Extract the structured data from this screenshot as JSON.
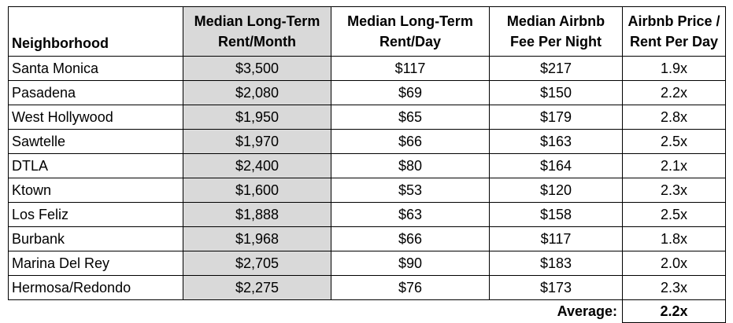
{
  "table": {
    "headers": {
      "neighborhood": "Neighborhood",
      "rent_month": [
        "Median Long-Term",
        "Rent/Month"
      ],
      "rent_day": [
        "Median Long-Term",
        "Rent/Day"
      ],
      "airbnb_fee": [
        "Median Airbnb",
        "Fee Per Night"
      ],
      "ratio": [
        "Airbnb Price /",
        "Rent Per Day"
      ]
    },
    "rows": [
      {
        "neighborhood": "Santa Monica",
        "rent_month": "$3,500",
        "rent_day": "$117",
        "airbnb_fee": "$217",
        "ratio": "1.9x"
      },
      {
        "neighborhood": "Pasadena",
        "rent_month": "$2,080",
        "rent_day": "$69",
        "airbnb_fee": "$150",
        "ratio": "2.2x"
      },
      {
        "neighborhood": "West Hollywood",
        "rent_month": "$1,950",
        "rent_day": "$65",
        "airbnb_fee": "$179",
        "ratio": "2.8x"
      },
      {
        "neighborhood": "Sawtelle",
        "rent_month": "$1,970",
        "rent_day": "$66",
        "airbnb_fee": "$163",
        "ratio": "2.5x"
      },
      {
        "neighborhood": "DTLA",
        "rent_month": "$2,400",
        "rent_day": "$80",
        "airbnb_fee": "$164",
        "ratio": "2.1x"
      },
      {
        "neighborhood": "Ktown",
        "rent_month": "$1,600",
        "rent_day": "$53",
        "airbnb_fee": "$120",
        "ratio": "2.3x"
      },
      {
        "neighborhood": "Los Feliz",
        "rent_month": "$1,888",
        "rent_day": "$63",
        "airbnb_fee": "$158",
        "ratio": "2.5x"
      },
      {
        "neighborhood": "Burbank",
        "rent_month": "$1,968",
        "rent_day": "$66",
        "airbnb_fee": "$117",
        "ratio": "1.8x"
      },
      {
        "neighborhood": "Marina Del Rey",
        "rent_month": "$2,705",
        "rent_day": "$90",
        "airbnb_fee": "$183",
        "ratio": "2.0x"
      },
      {
        "neighborhood": "Hermosa/Redondo",
        "rent_month": "$2,275",
        "rent_day": "$76",
        "airbnb_fee": "$173",
        "ratio": "2.3x"
      }
    ],
    "average": {
      "label": "Average:",
      "value": "2.2x"
    },
    "colors": {
      "highlight_column": "#d9d9d9",
      "border": "#000000"
    }
  }
}
